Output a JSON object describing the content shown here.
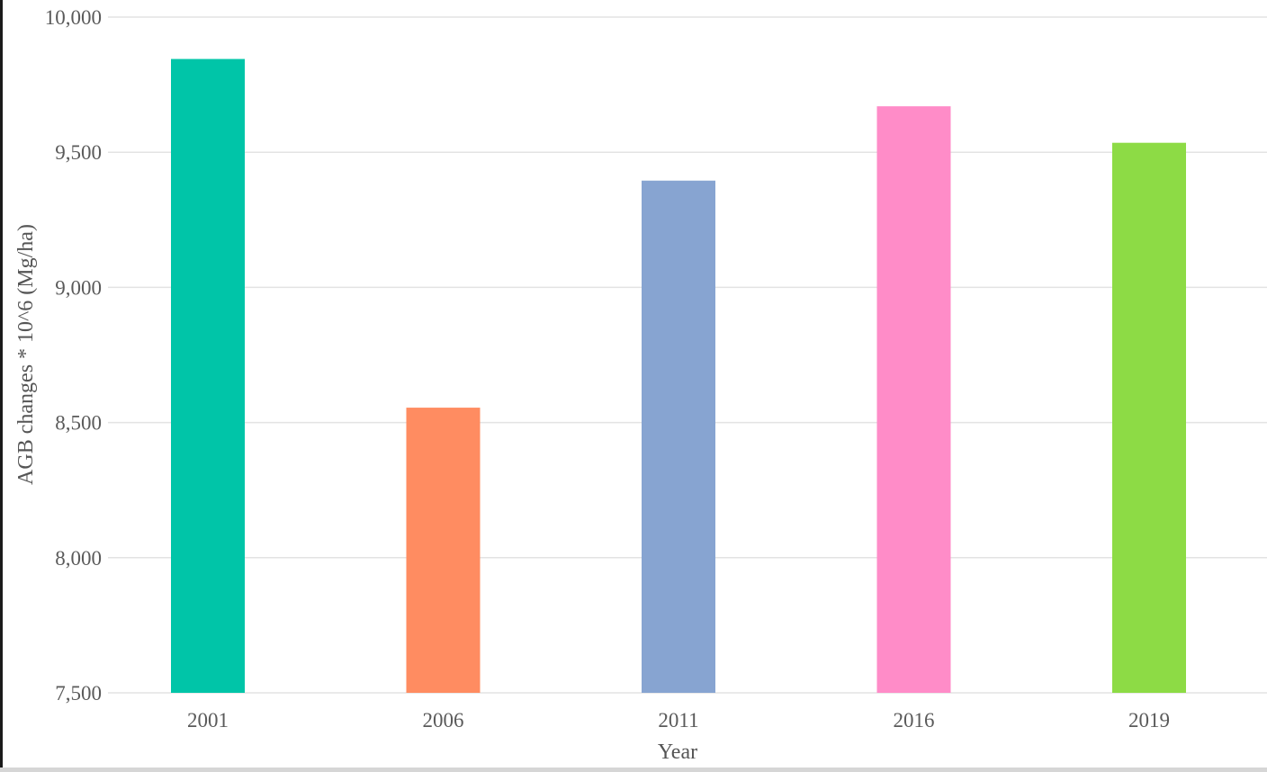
{
  "chart_data": {
    "type": "bar",
    "title": "",
    "xlabel": "Year",
    "ylabel": "AGB changes * 10^6  (Mg/ha)",
    "categories": [
      "2001",
      "2006",
      "2011",
      "2016",
      "2019"
    ],
    "values": [
      9845,
      8555,
      9395,
      9670,
      9535
    ],
    "colors": [
      "#00c5a8",
      "#ff8c61",
      "#87a4d1",
      "#ff8cc8",
      "#8ddb45"
    ],
    "ylim": [
      7500,
      10000
    ],
    "yticks": [
      7500,
      8000,
      8500,
      9000,
      9500,
      10000
    ],
    "ytick_labels": [
      "7,500",
      "8,000",
      "8,500",
      "9,000",
      "9,500",
      "10,000"
    ],
    "grid": true,
    "gridline_color": "#e3e3e3"
  }
}
